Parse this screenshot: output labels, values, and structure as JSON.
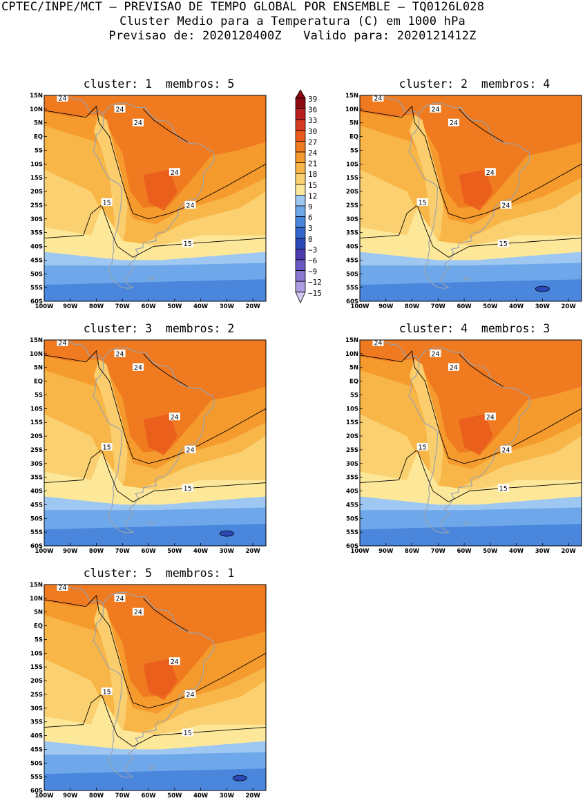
{
  "header": {
    "line1": "CPTEC/INPE/MCT — PREVISAO DE TEMPO GLOBAL POR ENSEMBLE — TQ0126L028",
    "line2": "Cluster Medio para a Temperatura (C) em 1000 hPa",
    "line3": "Previsao de: 2020120400Z   Valido para: 2020121412Z"
  },
  "map_axes": {
    "lat_labels": [
      "15N",
      "10N",
      "5N",
      "EQ",
      "5S",
      "10S",
      "15S",
      "20S",
      "25S",
      "30S",
      "35S",
      "40S",
      "45S",
      "50S",
      "55S",
      "60S"
    ],
    "lon_labels": [
      "100W",
      "90W",
      "80W",
      "70W",
      "60W",
      "50W",
      "40W",
      "30W",
      "20W"
    ]
  },
  "colorbar": {
    "labels": [
      "39",
      "36",
      "33",
      "30",
      "27",
      "24",
      "21",
      "18",
      "15",
      "12",
      "9",
      "6",
      "3",
      "0",
      "−3",
      "−6",
      "−9",
      "−12",
      "−15"
    ],
    "colors": [
      "#8c0a12",
      "#b81e1e",
      "#d63a22",
      "#ea5a1c",
      "#f07a20",
      "#f59a2c",
      "#f8b648",
      "#fbd070",
      "#fde89a",
      "#9ec8f2",
      "#6ea8ea",
      "#4a86dc",
      "#3266cc",
      "#2a48b8",
      "#4b3ab0",
      "#6a58c4",
      "#8a78d2",
      "#ac9ee0",
      "#d2caf0"
    ]
  },
  "contour_labels": {
    "c24": "24",
    "c15": "15"
  },
  "clusters": [
    {
      "title": "cluster: 1  membros: 5"
    },
    {
      "title": "cluster: 2  membros: 4"
    },
    {
      "title": "cluster: 3  membros: 2"
    },
    {
      "title": "cluster: 4  membros: 3"
    },
    {
      "title": "cluster: 5  membros: 1"
    }
  ]
}
